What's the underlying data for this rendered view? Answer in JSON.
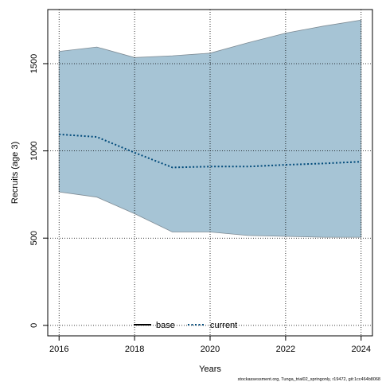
{
  "chart_data": {
    "type": "area",
    "xlabel": "Years",
    "ylabel": "Recruits (age 3)",
    "xlim": [
      2015.7,
      2024.3
    ],
    "ylim": [
      -60,
      1810
    ],
    "x_ticks": [
      2016,
      2018,
      2020,
      2022,
      2024
    ],
    "y_ticks": [
      0,
      500,
      1000,
      1500
    ],
    "grid": true,
    "legend_position": "bottom-center",
    "band": {
      "color": "#a6c4d5",
      "x": [
        2016,
        2017,
        2018,
        2019,
        2020,
        2021,
        2022,
        2023,
        2024
      ],
      "upper": [
        1570,
        1595,
        1535,
        1545,
        1560,
        1620,
        1675,
        1715,
        1750
      ],
      "lower": [
        765,
        735,
        640,
        535,
        535,
        515,
        510,
        505,
        505
      ]
    },
    "series": [
      {
        "name": "base",
        "color": "#000000",
        "style": "solid",
        "x": [],
        "y": []
      },
      {
        "name": "current",
        "color": "#004a7a",
        "style": "dotted",
        "x": [
          2016,
          2017,
          2018,
          2019,
          2020,
          2021,
          2022,
          2023,
          2024
        ],
        "y": [
          1095,
          1080,
          990,
          905,
          910,
          910,
          920,
          928,
          938
        ]
      }
    ],
    "footer": "stockassessment.org, Tunga_trial02_springonly, r19472, git:1cc464b8068"
  }
}
